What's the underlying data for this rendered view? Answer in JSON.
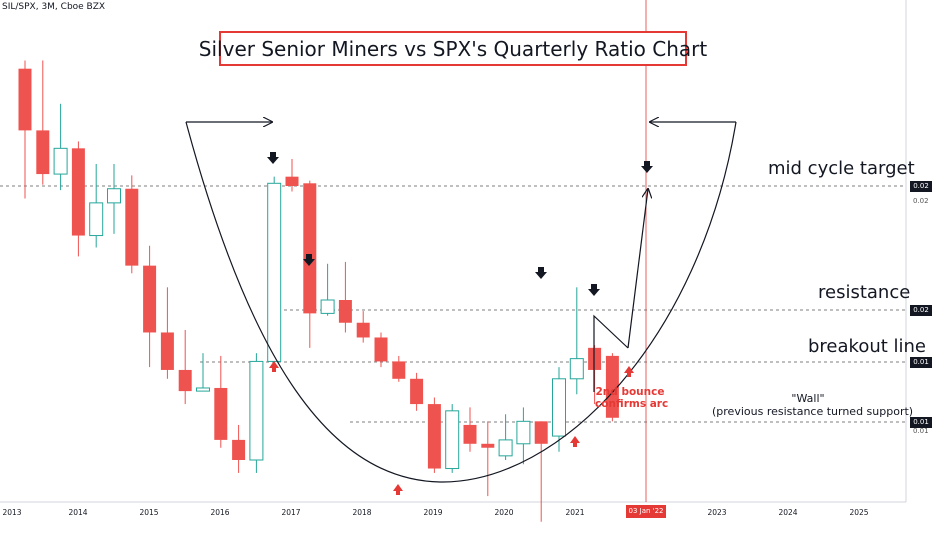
{
  "symbol": "SIL/SPX, 3M, Cboe BZX",
  "title": "Silver Senior Miners vs SPX's Quarterly Ratio Chart",
  "annotations": {
    "mid_cycle": "mid cycle target",
    "resistance": "resistance",
    "breakout": "breakout line",
    "wall_line1": "\"Wall\"",
    "wall_line2": "(previous resistance turned support)",
    "bounce_line1": "2nd bounce",
    "bounce_line2": "confirms arc"
  },
  "price_labels": {
    "mid": "0.02",
    "mid_sub": "0.02",
    "resistance": "0.02",
    "breakout": "0.01",
    "wall": "0.01",
    "wall_sub": "0.01"
  },
  "date_marker": "03 Jan '22",
  "colors": {
    "up": "#26a69a",
    "down": "#ef5350",
    "marker": "#e53935"
  },
  "chart_data": {
    "type": "candlestick",
    "x_tick_labels": [
      "2013",
      "2014",
      "2015",
      "2016",
      "2017",
      "2018",
      "2019",
      "2020",
      "2021",
      "2022",
      "2023",
      "2024",
      "2025"
    ],
    "candles": [
      {
        "q": "2013-Q1",
        "open": 0.029,
        "high": 0.03,
        "low": 0.017,
        "close": 0.0225
      },
      {
        "q": "2013-Q2",
        "open": 0.0225,
        "high": 0.03,
        "low": 0.018,
        "close": 0.0188
      },
      {
        "q": "2013-Q3",
        "open": 0.0188,
        "high": 0.0251,
        "low": 0.0176,
        "close": 0.0209
      },
      {
        "q": "2013-Q4",
        "open": 0.0209,
        "high": 0.0215,
        "low": 0.0134,
        "close": 0.0146
      },
      {
        "q": "2014-Q1",
        "open": 0.0146,
        "high": 0.0196,
        "low": 0.0139,
        "close": 0.0167
      },
      {
        "q": "2014-Q2",
        "open": 0.0167,
        "high": 0.0196,
        "low": 0.0147,
        "close": 0.0177
      },
      {
        "q": "2014-Q3",
        "open": 0.0177,
        "high": 0.0187,
        "low": 0.0125,
        "close": 0.0129
      },
      {
        "q": "2014-Q4",
        "open": 0.0129,
        "high": 0.014,
        "low": 0.0085,
        "close": 0.0098
      },
      {
        "q": "2015-Q1",
        "open": 0.0098,
        "high": 0.0118,
        "low": 0.0081,
        "close": 0.0084
      },
      {
        "q": "2015-Q2",
        "open": 0.0084,
        "high": 0.0099,
        "low": 0.0073,
        "close": 0.0077
      },
      {
        "q": "2015-Q3",
        "open": 0.0077,
        "high": 0.009,
        "low": 0.0077,
        "close": 0.0078
      },
      {
        "q": "2015-Q4",
        "open": 0.0078,
        "high": 0.0089,
        "low": 0.0061,
        "close": 0.0063
      },
      {
        "q": "2016-Q1",
        "open": 0.0063,
        "high": 0.0067,
        "low": 0.0055,
        "close": 0.0058
      },
      {
        "q": "2016-Q2",
        "open": 0.0058,
        "high": 0.009,
        "low": 0.0055,
        "close": 0.0087
      },
      {
        "q": "2016-Q3",
        "open": 0.0087,
        "high": 0.0186,
        "low": 0.0085,
        "close": 0.0181
      },
      {
        "q": "2016-Q4",
        "open": 0.0186,
        "high": 0.02,
        "low": 0.0175,
        "close": 0.0179
      },
      {
        "q": "2017-Q1",
        "open": 0.0181,
        "high": 0.0183,
        "low": 0.0092,
        "close": 0.0106
      },
      {
        "q": "2017-Q2",
        "open": 0.0106,
        "high": 0.013,
        "low": 0.0105,
        "close": 0.0112
      },
      {
        "q": "2017-Q3",
        "open": 0.0112,
        "high": 0.0131,
        "low": 0.0098,
        "close": 0.0102
      },
      {
        "q": "2017-Q4",
        "open": 0.0102,
        "high": 0.0107,
        "low": 0.0094,
        "close": 0.0096
      },
      {
        "q": "2018-Q1",
        "open": 0.0096,
        "high": 0.0098,
        "low": 0.0085,
        "close": 0.0087
      },
      {
        "q": "2018-Q2",
        "open": 0.0087,
        "high": 0.0089,
        "low": 0.008,
        "close": 0.0081
      },
      {
        "q": "2018-Q3",
        "open": 0.0081,
        "high": 0.0083,
        "low": 0.0071,
        "close": 0.0073
      },
      {
        "q": "2018-Q4",
        "open": 0.0073,
        "high": 0.0075,
        "low": 0.0055,
        "close": 0.0056
      },
      {
        "q": "2019-Q1",
        "open": 0.0056,
        "high": 0.0073,
        "low": 0.0055,
        "close": 0.0071
      },
      {
        "q": "2019-Q2",
        "open": 0.0067,
        "high": 0.0072,
        "low": 0.006,
        "close": 0.0062
      },
      {
        "q": "2019-Q3",
        "open": 0.0062,
        "high": 0.0068,
        "low": 0.005,
        "close": 0.0061
      },
      {
        "q": "2019-Q4",
        "open": 0.0059,
        "high": 0.007,
        "low": 0.0058,
        "close": 0.0063
      },
      {
        "q": "2020-Q1",
        "open": 0.0062,
        "high": 0.0072,
        "low": 0.0057,
        "close": 0.0068
      },
      {
        "q": "2020-Q2",
        "open": 0.0068,
        "high": 0.0068,
        "low": 0.0045,
        "close": 0.0062
      },
      {
        "q": "2020-Q3",
        "open": 0.0064,
        "high": 0.0085,
        "low": 0.006,
        "close": 0.0081
      },
      {
        "q": "2020-Q4",
        "open": 0.0081,
        "high": 0.0118,
        "low": 0.0076,
        "close": 0.0088
      },
      {
        "q": "2021-Q1",
        "open": 0.0092,
        "high": 0.0093,
        "low": 0.0073,
        "close": 0.0084
      },
      {
        "q": "2021-Q2",
        "open": 0.0089,
        "high": 0.009,
        "low": 0.0068,
        "close": 0.0069
      }
    ]
  }
}
